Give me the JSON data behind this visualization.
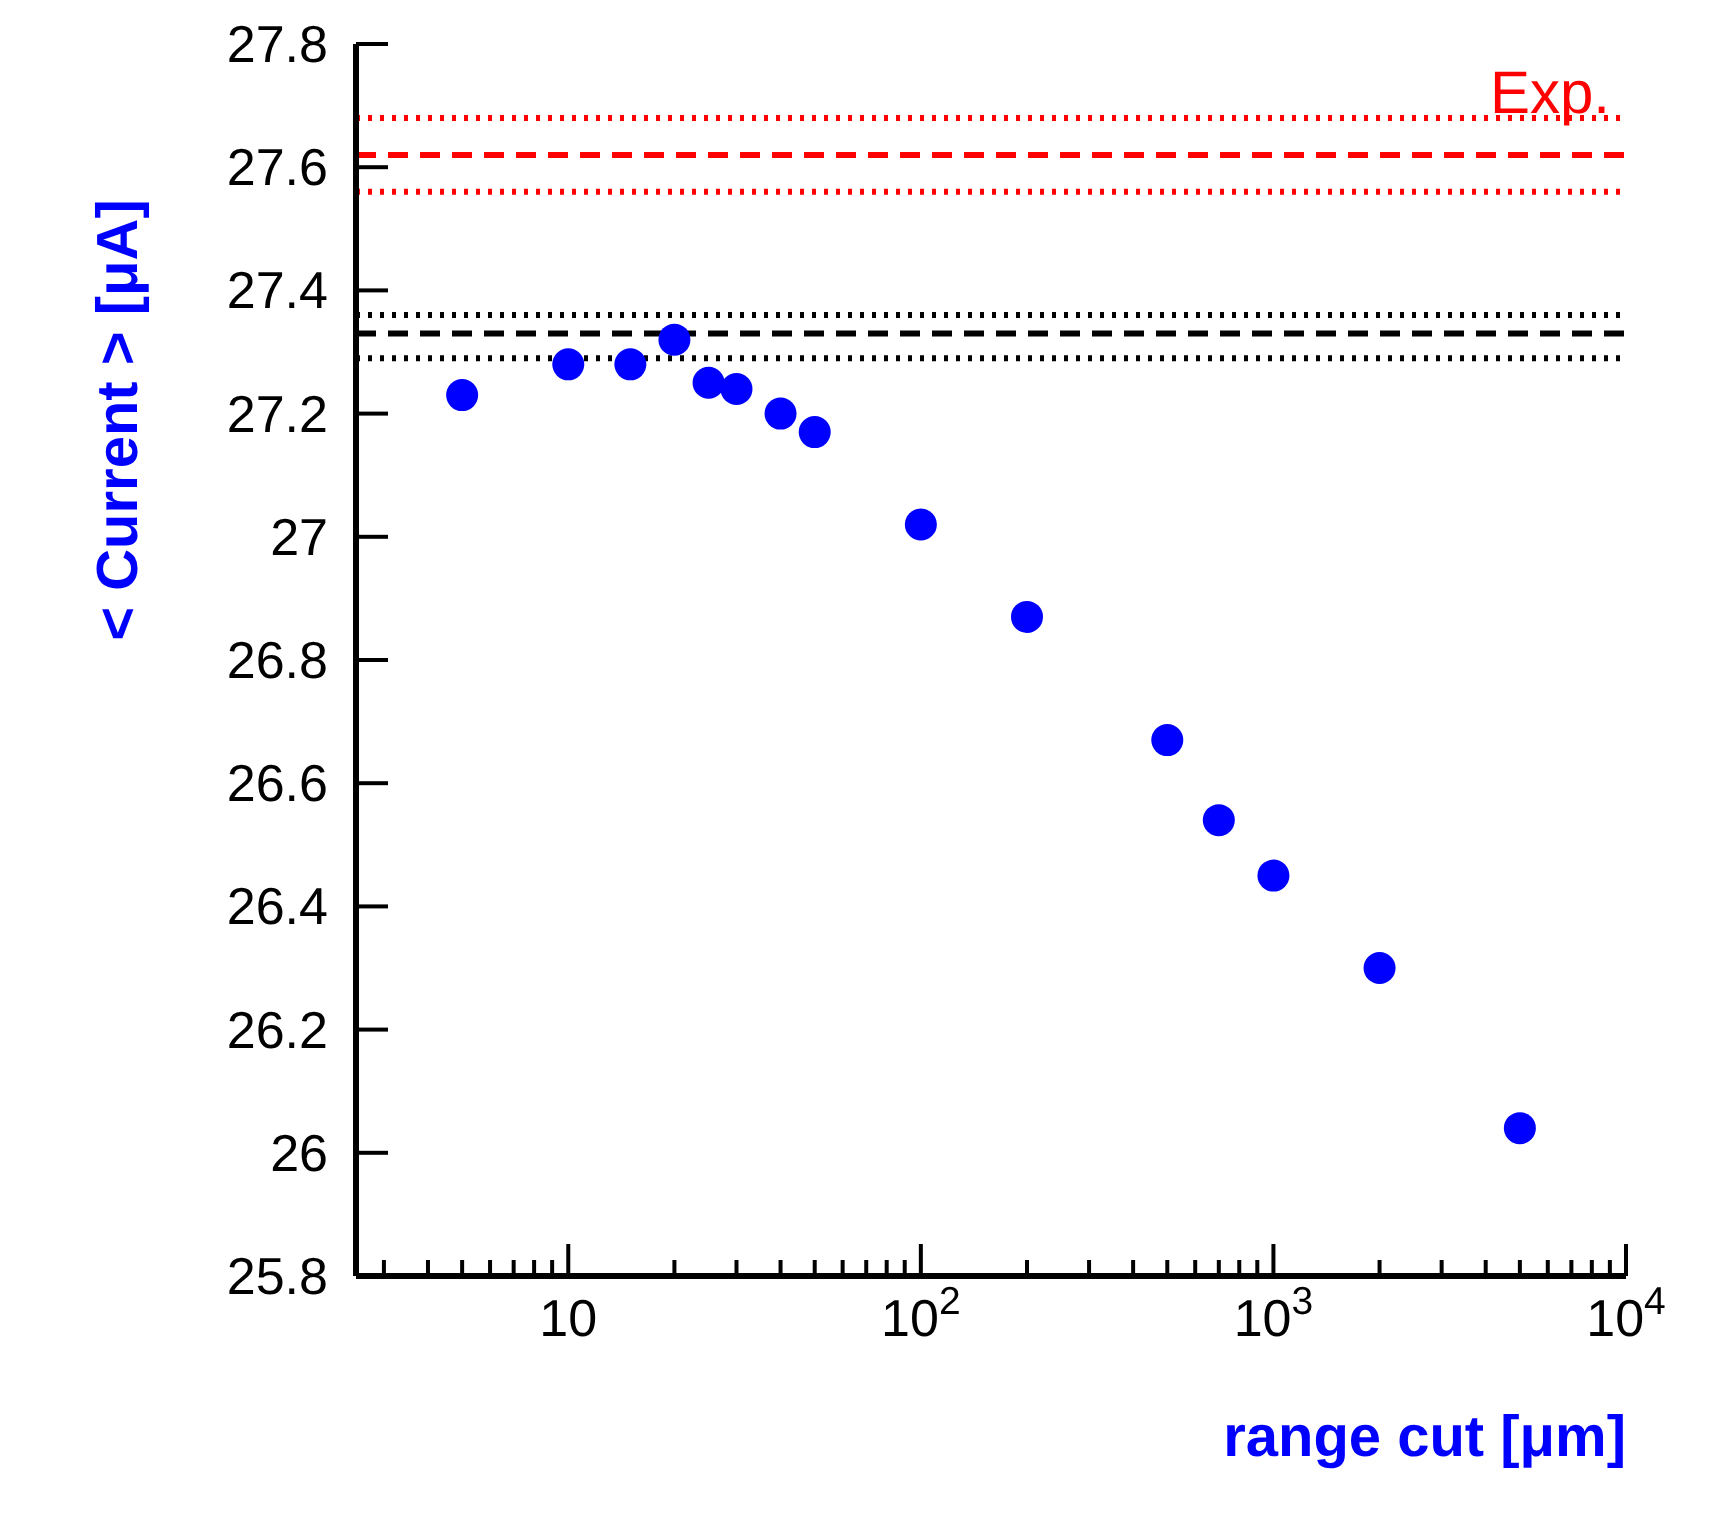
{
  "chart_data": {
    "type": "scatter",
    "xlabel": "range cut  [μm]",
    "ylabel": "< Current >  [μA]",
    "log": "x",
    "marker": "circle",
    "grid": false,
    "xlim": [
      2.5,
      10000
    ],
    "xticks": [
      {
        "value": 3,
        "label": null
      },
      {
        "value": 4,
        "label": null
      },
      {
        "value": 5,
        "label": null
      },
      {
        "value": 6,
        "label": null
      },
      {
        "value": 7,
        "label": null
      },
      {
        "value": 8,
        "label": null
      },
      {
        "value": 9,
        "label": null
      },
      10,
      {
        "value": 20,
        "label": null
      },
      {
        "value": 30,
        "label": null
      },
      {
        "value": 40,
        "label": null
      },
      {
        "value": 50,
        "label": null
      },
      {
        "value": 60,
        "label": null
      },
      {
        "value": 70,
        "label": null
      },
      {
        "value": 80,
        "label": null
      },
      {
        "value": 90,
        "label": null
      },
      {
        "value": 100,
        "label": "10$^{2}$"
      },
      {
        "value": 200,
        "label": null
      },
      {
        "value": 300,
        "label": null
      },
      {
        "value": 400,
        "label": null
      },
      {
        "value": 500,
        "label": null
      },
      {
        "value": 600,
        "label": null
      },
      {
        "value": 700,
        "label": null
      },
      {
        "value": 800,
        "label": null
      },
      {
        "value": 900,
        "label": null
      },
      {
        "value": 1000,
        "label": "10$^{3}$"
      },
      {
        "value": 2000,
        "label": null
      },
      {
        "value": 3000,
        "label": null
      },
      {
        "value": 4000,
        "label": null
      },
      {
        "value": 5000,
        "label": null
      },
      {
        "value": 6000,
        "label": null
      },
      {
        "value": 7000,
        "label": null
      },
      {
        "value": 8000,
        "label": null
      },
      {
        "value": 9000,
        "label": null
      },
      {
        "value": 10000,
        "label": "10$^{4}$"
      }
    ],
    "ylim": [
      25.8,
      27.8
    ],
    "yticks": [
      25.8,
      26,
      26.2,
      26.4,
      26.6,
      26.8,
      27,
      27.2,
      27.4,
      27.6,
      27.8
    ],
    "series": [
      {
        "color": "#0000ff",
        "x": [
          5,
          10,
          15,
          20,
          25,
          30,
          40,
          50,
          100,
          200,
          500,
          700,
          1000,
          2000,
          5000
        ],
        "values": [
          27.23,
          27.28,
          27.28,
          27.32,
          27.25,
          27.24,
          27.2,
          27.17,
          27.02,
          26.87,
          26.67,
          26.54,
          26.45,
          26.3,
          26.04
        ]
      }
    ],
    "ref_lines": [
      {
        "axis": "y",
        "value": 27.62,
        "label": "Exp.",
        "color": "#ff0000",
        "line_style": "dashed"
      },
      {
        "axis": "y",
        "value": 27.68,
        "color": "#ff0000",
        "line_style": "dotted"
      },
      {
        "axis": "y",
        "value": 27.56,
        "color": "#ff0000",
        "line_style": "dotted"
      },
      {
        "axis": "y",
        "value": 27.33,
        "color": "#000000",
        "line_style": "dashed"
      },
      {
        "axis": "y",
        "value": 27.36,
        "color": "#000000",
        "line_style": "dotted"
      },
      {
        "axis": "y",
        "value": 27.29,
        "color": "#000000",
        "line_style": "dotted"
      }
    ]
  }
}
